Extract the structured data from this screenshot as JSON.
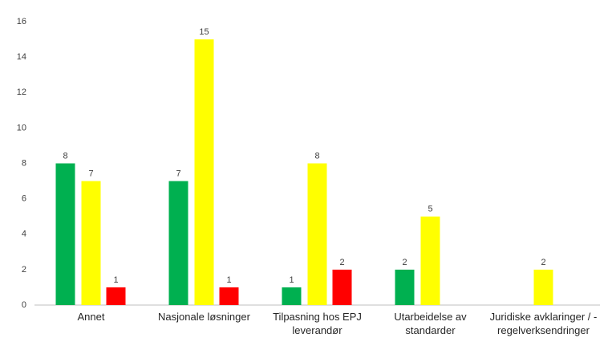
{
  "chart_data": {
    "type": "bar",
    "categories": [
      "Annet",
      "Nasjonale løsninger",
      "Tilpasning hos EPJ leverandør",
      "Utarbeidelse av standarder",
      "Juridiske avklaringer / -regelverksendringer"
    ],
    "series": [
      {
        "color": "#00b050",
        "values": [
          8,
          7,
          1,
          2,
          null
        ]
      },
      {
        "color": "#ffff00",
        "values": [
          7,
          15,
          8,
          5,
          2
        ]
      },
      {
        "color": "#ff0000",
        "values": [
          1,
          1,
          2,
          null,
          null
        ]
      }
    ],
    "ylim": [
      0,
      16
    ],
    "yticks": [
      0,
      2,
      4,
      6,
      8,
      10,
      12,
      14,
      16
    ],
    "grid": false
  }
}
